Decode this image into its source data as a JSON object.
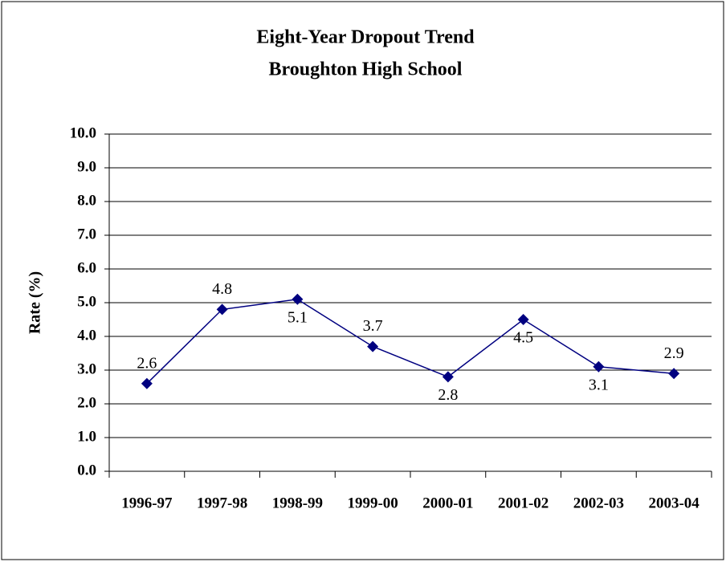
{
  "chart_data": {
    "type": "line",
    "title": "Eight-Year Dropout Trend",
    "subtitle": "Broughton High School",
    "y_label": "Rate (%)",
    "categories": [
      "1996-97",
      "1997-98",
      "1998-99",
      "1999-00",
      "2000-01",
      "2001-02",
      "2002-03",
      "2003-04"
    ],
    "series": [
      {
        "name": "Rate",
        "color": "#000080",
        "values": [
          2.6,
          4.8,
          5.1,
          3.7,
          2.8,
          4.5,
          3.1,
          2.9
        ]
      }
    ],
    "ylim": [
      0,
      10
    ],
    "yticks": [
      {
        "value": 0,
        "label": "0.0"
      },
      {
        "value": 1,
        "label": "1.0"
      },
      {
        "value": 2,
        "label": "2.0"
      },
      {
        "value": 3,
        "label": "3.0"
      },
      {
        "value": 4,
        "label": "4.0"
      },
      {
        "value": 5,
        "label": "5.0"
      },
      {
        "value": 6,
        "label": "6.0"
      },
      {
        "value": 7,
        "label": "7.0"
      },
      {
        "value": 8,
        "label": "8.0"
      },
      {
        "value": 9,
        "label": "9.0"
      },
      {
        "value": 10,
        "label": "10.0"
      }
    ],
    "grid": true
  }
}
